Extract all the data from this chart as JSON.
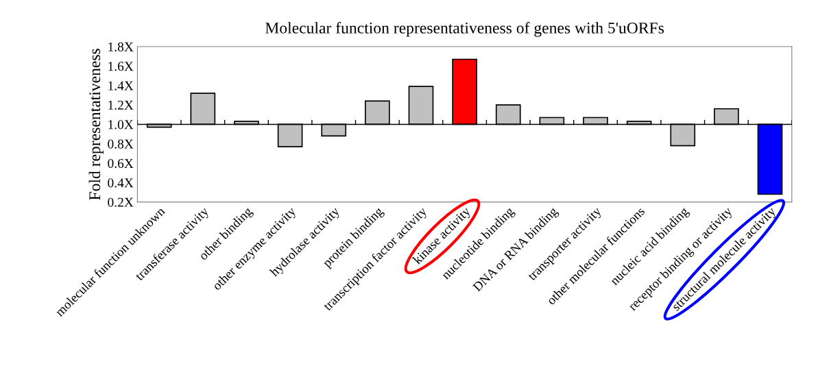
{
  "chart_data": {
    "type": "bar",
    "title": "Molecular function representativeness of genes with 5'uORFs",
    "ylabel": "Fold representativeness",
    "categories": [
      "molecular function unknown",
      "transferase activity",
      "other binding",
      "other enzyme activity",
      "hydrolase activity",
      "protein binding",
      "transcription factor activity",
      "kinase activity",
      "nucleotide binding",
      "DNA or RNA binding",
      "transporter activity",
      "other molecular functions",
      "nucleic acid binding",
      "receptor binding or activity",
      "structural molecule activity"
    ],
    "base": [
      1.0,
      1.0,
      1.0,
      1.0,
      1.0,
      1.0,
      1.0,
      1.0,
      1.0,
      1.0,
      1.0,
      1.0,
      1.0,
      1.0,
      1.0
    ],
    "values": [
      -0.03,
      0.32,
      0.03,
      -0.23,
      -0.12,
      0.24,
      0.39,
      0.67,
      0.2,
      0.07,
      0.07,
      0.03,
      -0.22,
      0.16,
      -0.72
    ],
    "colors": [
      "#c0c0c0",
      "#c0c0c0",
      "#c0c0c0",
      "#c0c0c0",
      "#c0c0c0",
      "#c0c0c0",
      "#c0c0c0",
      "#ff0000",
      "#c0c0c0",
      "#c0c0c0",
      "#c0c0c0",
      "#c0c0c0",
      "#c0c0c0",
      "#c0c0c0",
      "#0000ff"
    ],
    "ylim": [
      0.2,
      1.8
    ],
    "yticks": [
      {
        "value": 0.2,
        "label": "0.2X"
      },
      {
        "value": 0.4,
        "label": "0.4X"
      },
      {
        "value": 0.6,
        "label": "0.6X"
      },
      {
        "value": 0.8,
        "label": "0.8X"
      },
      {
        "value": 1.0,
        "label": "1.0X"
      },
      {
        "value": 1.2,
        "label": "1.2X"
      },
      {
        "value": 1.4,
        "label": "1.4X"
      },
      {
        "value": 1.6,
        "label": "1.6X"
      },
      {
        "value": 1.8,
        "label": "1.8X"
      }
    ],
    "ref_lines": [
      {
        "axis": "y",
        "value": 1.0,
        "color": "#000000"
      }
    ],
    "grid": false
  }
}
